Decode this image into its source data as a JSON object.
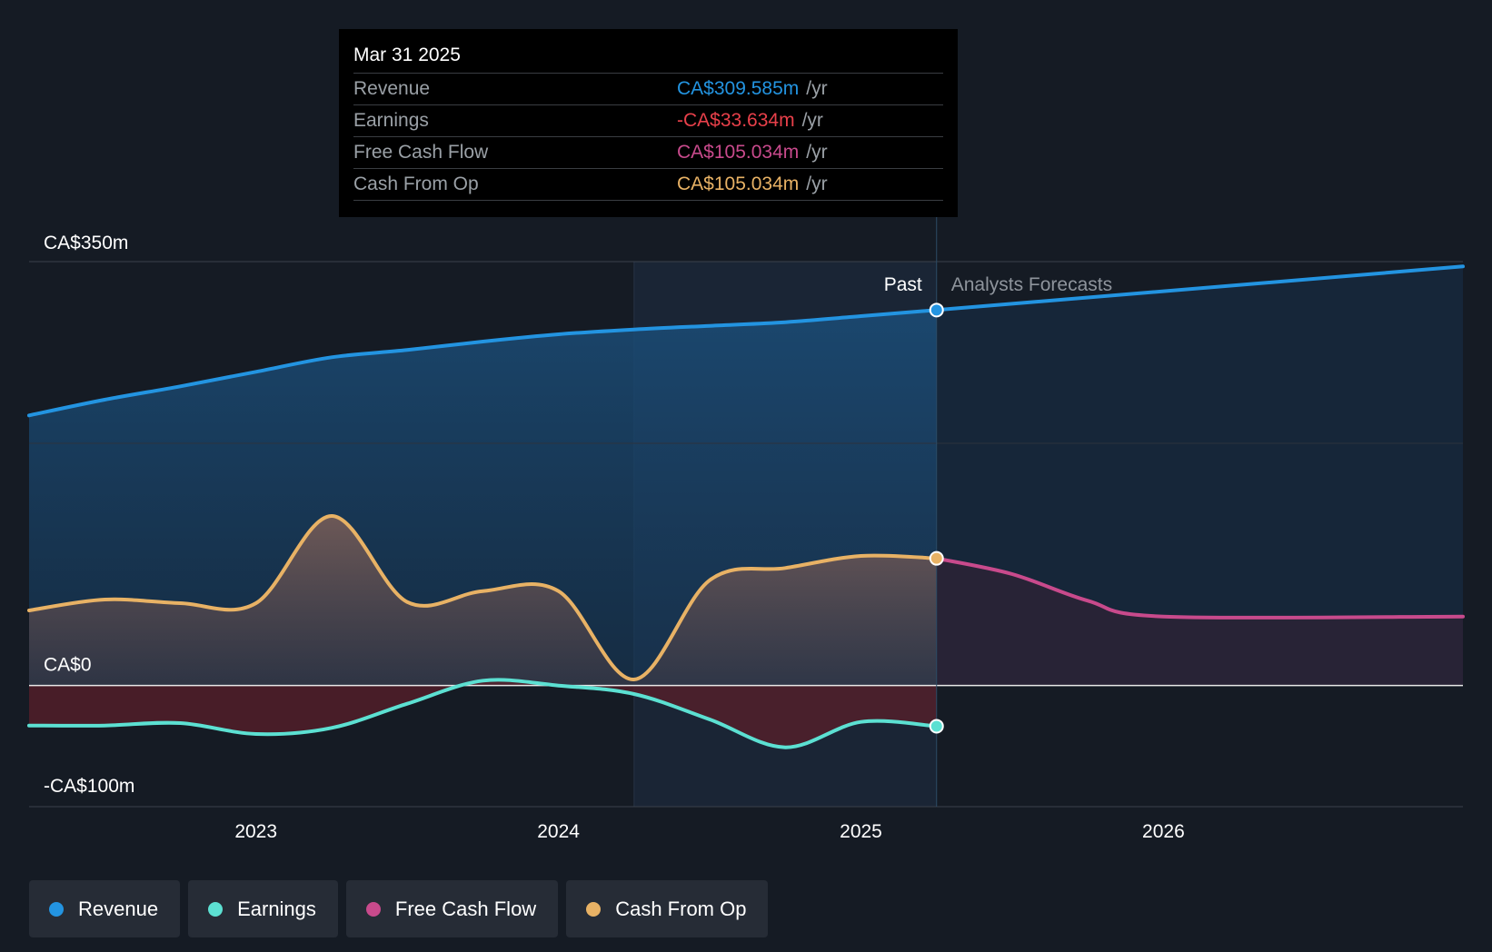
{
  "tooltip": {
    "date": "Mar 31 2025",
    "unit": "/yr",
    "rows": [
      {
        "label": "Revenue",
        "value": "CA$309.585m",
        "color": "#2394e1"
      },
      {
        "label": "Earnings",
        "value": "-CA$33.634m",
        "color": "#e8404a"
      },
      {
        "label": "Free Cash Flow",
        "value": "CA$105.034m",
        "color": "#c84a8c"
      },
      {
        "label": "Cash From Op",
        "value": "CA$105.034m",
        "color": "#e8b265"
      }
    ]
  },
  "legend": [
    {
      "label": "Revenue",
      "color": "#2394e1"
    },
    {
      "label": "Earnings",
      "color": "#5ce0d2"
    },
    {
      "label": "Free Cash Flow",
      "color": "#c84a8c"
    },
    {
      "label": "Cash From Op",
      "color": "#e8b265"
    }
  ],
  "chart_data": {
    "type": "line",
    "y_unit": "CA$ millions",
    "ylim": [
      -100,
      350
    ],
    "y_tick_labels": [
      {
        "value": 350,
        "label": "CA$350m"
      },
      {
        "value": 0,
        "label": "CA$0"
      },
      {
        "value": -100,
        "label": "-CA$100m"
      }
    ],
    "xlim": [
      2022.25,
      2026.99
    ],
    "x_ticks": [
      2023,
      2024,
      2025,
      2026
    ],
    "x_tick_labels": [
      "2023",
      "2024",
      "2025",
      "2026"
    ],
    "past_label": "Past",
    "forecast_label": "Analysts Forecasts",
    "past_end_x": 2025.25,
    "highlight_start_x": 2024.25,
    "series": [
      {
        "name": "Revenue",
        "color": "#2394e1",
        "x": [
          2022.25,
          2022.5,
          2022.75,
          2023.0,
          2023.25,
          2023.5,
          2023.75,
          2024.0,
          2024.25,
          2024.5,
          2024.75,
          2025.0,
          2025.25
        ],
        "y": [
          223,
          236,
          247,
          259,
          271,
          277,
          284,
          290,
          294,
          297,
          300,
          305,
          310
        ]
      },
      {
        "name": "Revenue Forecast",
        "color": "#2394e1",
        "forecast": true,
        "x": [
          2025.25,
          2026.99
        ],
        "y": [
          310,
          346
        ]
      },
      {
        "name": "Earnings",
        "color": "#5ce0d2",
        "x": [
          2022.25,
          2022.5,
          2022.75,
          2023.0,
          2023.25,
          2023.5,
          2023.75,
          2024.0,
          2024.25,
          2024.5,
          2024.75,
          2025.0,
          2025.25
        ],
        "y": [
          -33,
          -33,
          -31,
          -40,
          -35,
          -15,
          4,
          0,
          -7,
          -28,
          -51,
          -30,
          -33.6
        ]
      },
      {
        "name": "Free Cash Flow Forecast",
        "color": "#c84a8c",
        "forecast": true,
        "x": [
          2025.25,
          2025.5,
          2025.75,
          2026.0,
          2026.99
        ],
        "y": [
          105,
          92,
          70,
          57,
          57
        ]
      },
      {
        "name": "Cash From Op",
        "color": "#e8b265",
        "x": [
          2022.25,
          2022.5,
          2022.75,
          2023.0,
          2023.25,
          2023.5,
          2023.75,
          2024.0,
          2024.25,
          2024.5,
          2024.75,
          2025.0,
          2025.25
        ],
        "y": [
          62,
          71,
          68,
          68,
          140,
          69,
          78,
          78,
          5,
          87,
          97,
          107,
          105
        ]
      }
    ]
  }
}
